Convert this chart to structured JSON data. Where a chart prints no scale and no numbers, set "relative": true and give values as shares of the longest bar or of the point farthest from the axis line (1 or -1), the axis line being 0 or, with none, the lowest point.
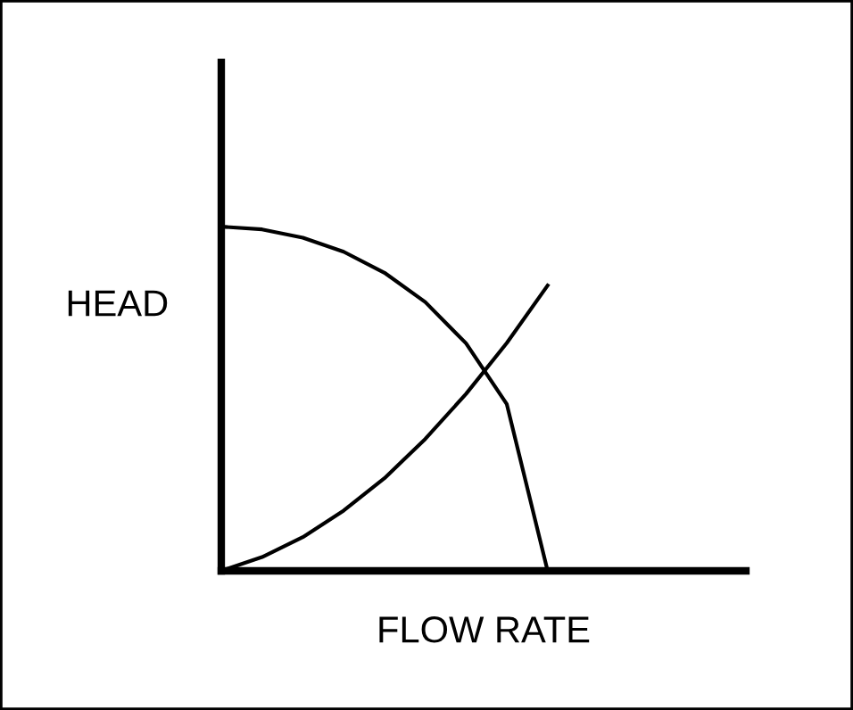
{
  "chart_data": {
    "type": "line",
    "relative": true,
    "xlabel": "FLOW RATE",
    "ylabel": "HEAD",
    "tick_labels": false,
    "legend": false,
    "marker": "none",
    "line_style": "solid",
    "categories": [
      null,
      null,
      null,
      null,
      null,
      null,
      null,
      null,
      null
    ],
    "series": [
      {
        "color": "#000000",
        "values": [
          1,
          0.992,
          0.968,
          0.927,
          0.866,
          0.781,
          0.661,
          0.484,
          0
        ]
      },
      {
        "color": "#000000",
        "values": [
          0,
          0.04,
          0.098,
          0.175,
          0.269,
          0.383,
          0.514,
          0.662,
          0.829
        ]
      }
    ]
  }
}
